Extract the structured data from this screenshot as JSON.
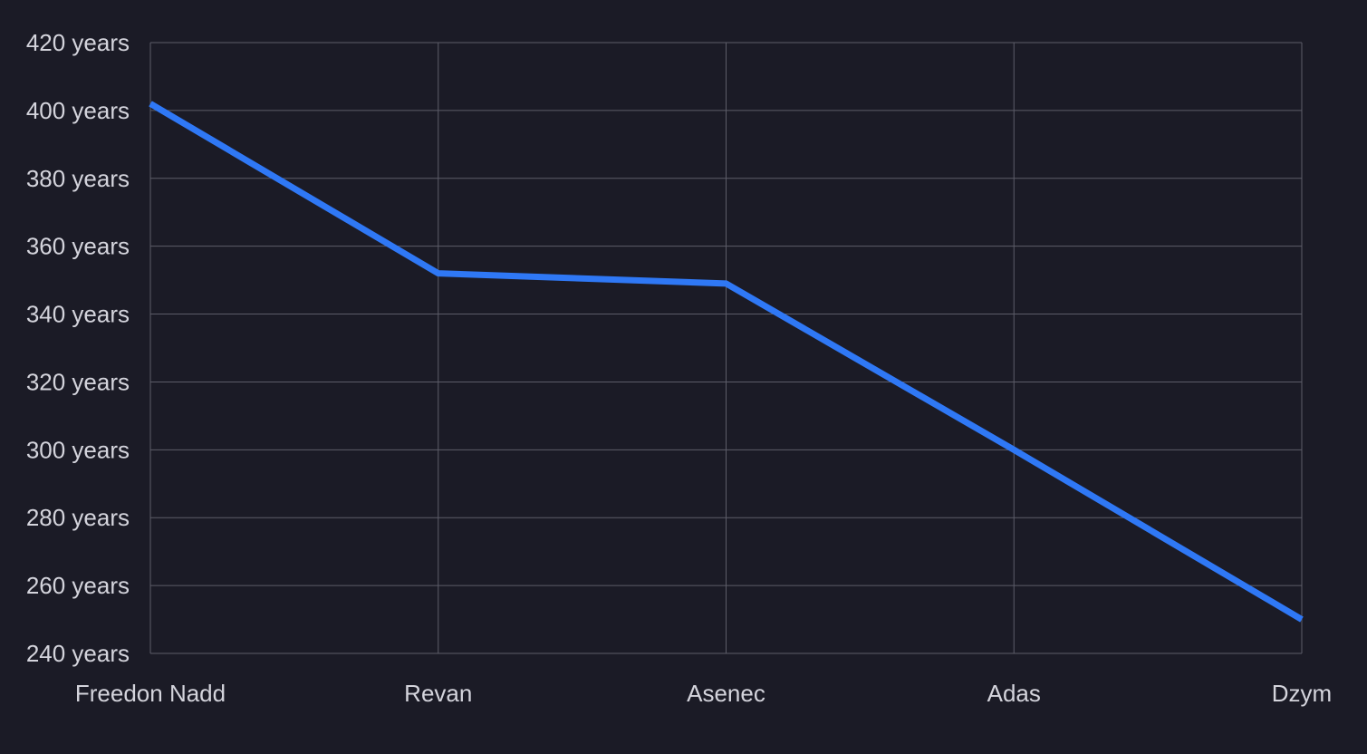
{
  "chart_data": {
    "type": "line",
    "categories": [
      "Freedon Nadd",
      "Revan",
      "Asenec",
      "Adas",
      "Dzym"
    ],
    "series": [
      {
        "values": [
          402,
          352,
          349,
          300,
          250
        ]
      }
    ],
    "ylim": [
      240,
      420
    ],
    "yticks": [
      240,
      260,
      280,
      300,
      320,
      340,
      360,
      380,
      400,
      420
    ],
    "ytick_labels": [
      "240 years",
      "260 years",
      "280 years",
      "300 years",
      "320 years",
      "340 years",
      "360 years",
      "380 years",
      "400 years",
      "420 years"
    ],
    "grid": true,
    "colors": {
      "background": "#1b1b26",
      "grid": "#5c5c68",
      "line": "#2f78f5",
      "text": "#d4d4dc"
    }
  }
}
